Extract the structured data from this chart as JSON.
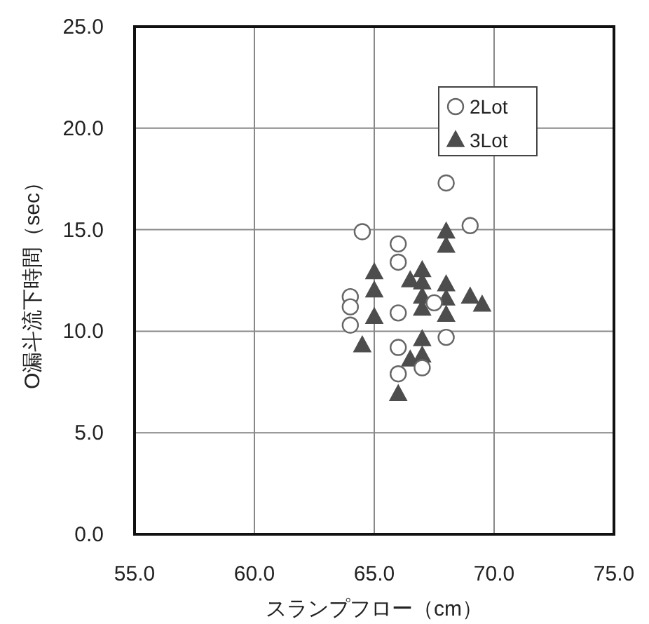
{
  "chart_data": {
    "type": "scatter",
    "xlabel": "スランプフロー（cm）",
    "ylabel": "O漏斗流下時間（sec）",
    "xlim": [
      55,
      75
    ],
    "xticks": [
      {
        "value": 55,
        "label": "55.0"
      },
      {
        "value": 60,
        "label": "60.0"
      },
      {
        "value": 65,
        "label": "65.0"
      },
      {
        "value": 70,
        "label": "70.0"
      },
      {
        "value": 75,
        "label": "75.0"
      }
    ],
    "ylim": [
      0,
      25
    ],
    "yticks": [
      {
        "value": 0,
        "label": "0.0"
      },
      {
        "value": 5,
        "label": "5.0"
      },
      {
        "value": 10,
        "label": "10.0"
      },
      {
        "value": 15,
        "label": "15.0"
      },
      {
        "value": 20,
        "label": "20.0"
      },
      {
        "value": 25,
        "label": "25.0"
      }
    ],
    "grid": true,
    "legend": "top right",
    "series": [
      {
        "name": "2Lot",
        "color": "#666666",
        "marker": "circle",
        "x": [
          64.5,
          64.0,
          64.0,
          64.0,
          66.0,
          66.0,
          66.0,
          66.0,
          66.0,
          68.0,
          69.0,
          68.0,
          67.0,
          67.5
        ],
        "values": [
          14.9,
          11.7,
          11.2,
          10.3,
          14.3,
          13.4,
          10.9,
          9.2,
          7.9,
          17.3,
          15.2,
          9.7,
          8.2,
          11.4
        ]
      },
      {
        "name": "3Lot",
        "color": "#4d4d4d",
        "marker": "triangle",
        "x": [
          65.0,
          65.0,
          65.0,
          64.5,
          66.5,
          67.0,
          67.0,
          67.0,
          67.0,
          67.0,
          67.0,
          66.5,
          66.0,
          68.0,
          68.0,
          68.0,
          68.0,
          68.0,
          69.0,
          69.5
        ],
        "values": [
          12.9,
          12.0,
          10.7,
          9.3,
          12.5,
          13.0,
          12.4,
          11.7,
          11.1,
          9.6,
          8.8,
          8.6,
          6.9,
          14.9,
          14.2,
          12.3,
          11.6,
          10.8,
          11.7,
          11.3
        ]
      }
    ]
  }
}
